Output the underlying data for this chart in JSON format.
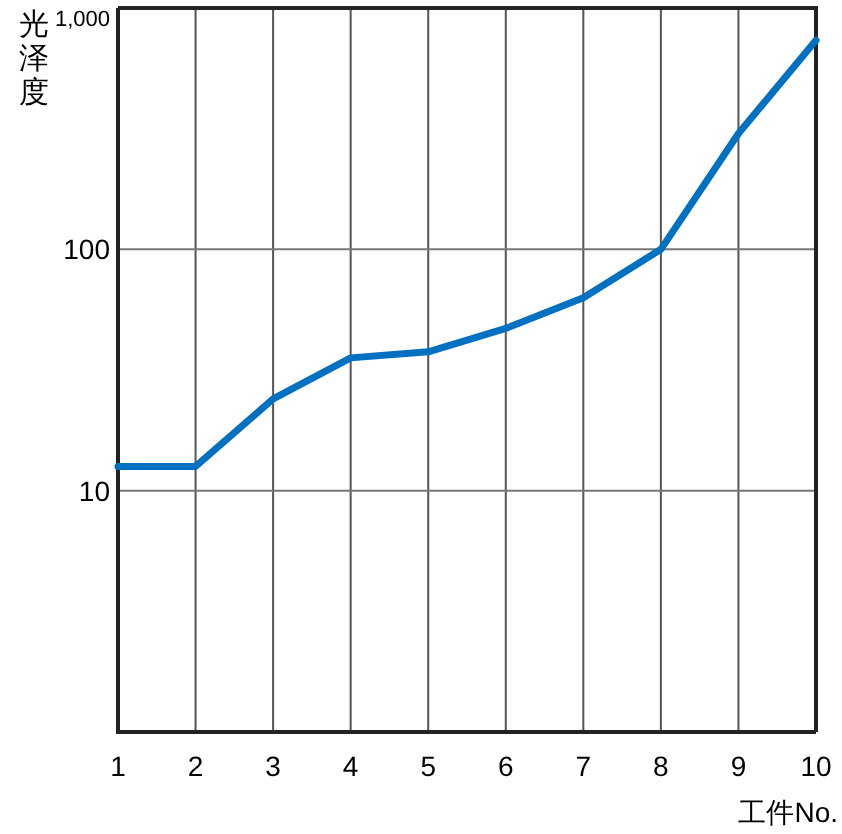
{
  "chart_data": {
    "type": "line",
    "xlabel": "工件No.",
    "ylabel": "光泽度",
    "x": [
      1,
      2,
      3,
      4,
      5,
      6,
      7,
      8,
      9,
      10
    ],
    "series": [
      {
        "color": "#0070c0",
        "values": [
          12.6,
          12.6,
          24,
          35.5,
          37.6,
          47,
          63,
          100,
          302,
          735
        ]
      }
    ],
    "xlim": [
      1,
      10
    ],
    "xticks": [
      1,
      2,
      3,
      4,
      5,
      6,
      7,
      8,
      9,
      10
    ],
    "ylim": [
      1,
      1000
    ],
    "yticks": [
      {
        "value": 1,
        "label": null
      },
      10,
      100,
      {
        "value": 1000,
        "label": "1,000"
      }
    ],
    "log": "y",
    "grid": true
  }
}
